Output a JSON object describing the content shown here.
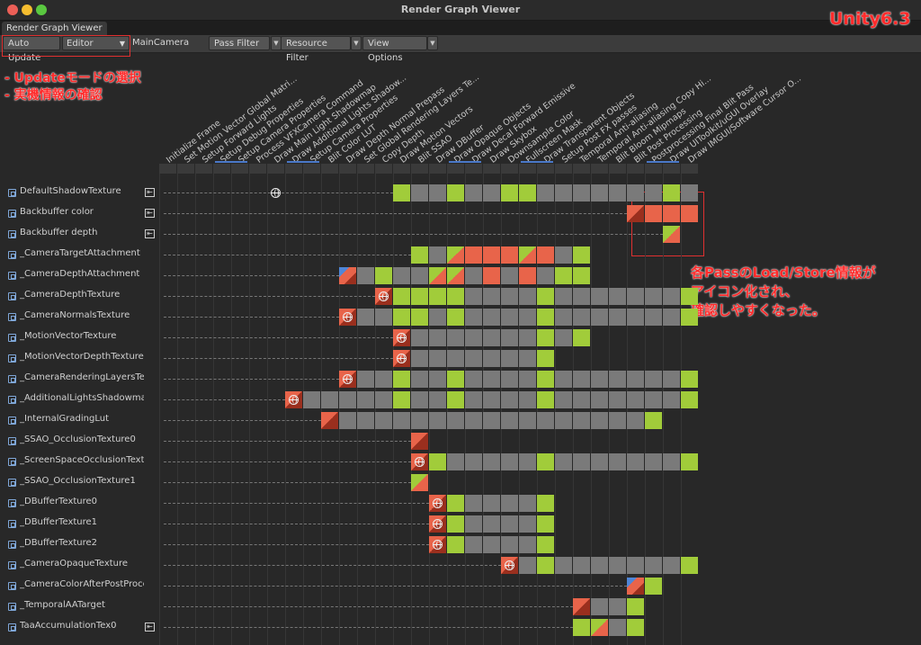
{
  "window": {
    "title": "Render Graph Viewer",
    "tab": "Render Graph Viewer",
    "traffic_lights": [
      "#ec5f57",
      "#f5bd2f",
      "#5ac840"
    ]
  },
  "toolbar": {
    "auto_update": "Auto Update",
    "mode": "Editor",
    "camera": "MainCamera",
    "pass_filter": "Pass Filter",
    "resource_filter": "Resource Filter",
    "view_options": "View Options"
  },
  "annotations": {
    "version": "Unity6.3",
    "update_line1": "- Updateモードの選択",
    "update_line2": "- 実機情報の確認",
    "loadstore_line1": "各PassのLoad/Store情報が",
    "loadstore_line2": "アイコン化され、",
    "loadstore_line3": "確認しやすくなった。"
  },
  "colors": {
    "read": "#a1cc3a",
    "write": "#e8644a",
    "unused": "#7a7a7a",
    "accent": "#ff2b2b"
  },
  "passes": [
    "Initialize Frame",
    "Set Motion Vector Global Matri...",
    "Setup Forward Lights",
    "Setup Debug Properties",
    "Setup Camera Properties",
    "Process VFXCamera Command",
    "Draw Main Light Shadowmap",
    "Draw Additional Lights Shadow...",
    "Setup Camera Properties",
    "Blit Color LUT",
    "Draw Depth Normal Prepass",
    "Set Global Rendering Layers Te...",
    "Copy Depth",
    "Draw Motion Vectors",
    "Blit SSAO",
    "Draw DBuffer",
    "Draw Opaque Objects",
    "Draw Decal Forward Emissive",
    "Draw Skybox",
    "Downsample Color",
    "Fullscreen Mask",
    "Draw Transparent Objects",
    "Setup Post FX passes",
    "Temporal Anti-aliasing",
    "Temporal Anti-aliasing Copy Hi...",
    "Blit Bloom Mipmaps",
    "Blit Post Processing",
    "Postprocessing Final Blit Pass",
    "Draw UIToolkit/uGUI Overlay",
    "Draw IMGUI/Software Cursor O..."
  ],
  "resources": [
    {
      "name": "DefaultShadowTexture",
      "imported": true,
      "cells": "13:g,14:n,15:n,16:g,17:n,18:n,19:g,20:g,21:n,22:n,23:n,24:n,25:n,26:n,27:n,28:g,29:n",
      "globe": 6
    },
    {
      "name": "Backbuffer color",
      "imported": true,
      "cells": "26:rw,27:r,28:r,29:r"
    },
    {
      "name": "Backbuffer depth",
      "imported": true,
      "cells": "28:gw"
    },
    {
      "name": "_CameraTargetAttachment",
      "imported": false,
      "cells": "14:g,15:n,16:gr,17:r,18:r,19:r,20:gr,21:r,22:n,23:g"
    },
    {
      "name": "_CameraDepthAttachment",
      "imported": false,
      "cells": "10:bw,11:n,12:g,13:n,14:n,15:gr,16:gr,17:n,18:r,19:n,20:r,21:n,22:g,23:g"
    },
    {
      "name": "_CameraDepthTexture",
      "imported": false,
      "cells": "12:G,13:g,14:g,15:g,16:g,17:n,18:n,19:n,20:n,21:g,22:n,23:n,24:n,25:n,26:n,27:n,28:n,29:g"
    },
    {
      "name": "_CameraNormalsTexture",
      "imported": false,
      "cells": "10:G,11:n,12:n,13:g,14:g,15:n,16:g,17:n,18:n,19:n,20:n,21:g,22:n,23:n,24:n,25:n,26:n,27:n,28:n,29:g"
    },
    {
      "name": "_MotionVectorTexture",
      "imported": false,
      "cells": "13:G,14:n,15:n,16:n,17:n,18:n,19:n,20:n,21:g,22:n,23:g"
    },
    {
      "name": "_MotionVectorDepthTexture",
      "imported": false,
      "cells": "13:G,14:n,15:n,16:n,17:n,18:n,19:n,20:n,21:g"
    },
    {
      "name": "_CameraRenderingLayersText...",
      "imported": false,
      "cells": "10:G,11:n,12:n,13:g,14:n,15:n,16:g,17:n,18:n,19:n,20:n,21:g,22:n,23:n,24:n,25:n,26:n,27:n,28:n,29:g",
      "globe": 11
    },
    {
      "name": "_AdditionalLightsShadowmap...",
      "imported": false,
      "cells": "7:G,8:n,9:n,10:n,11:n,12:n,13:g,14:n,15:n,16:g,17:n,18:n,19:n,20:n,21:g,22:n,23:n,24:n,25:n,26:n,27:n,28:n,29:g"
    },
    {
      "name": "_InternalGradingLut",
      "imported": false,
      "cells": "9:rw,10:n,11:n,12:n,13:n,14:n,15:n,16:n,17:n,18:n,19:n,20:n,21:n,22:n,23:n,24:n,25:n,26:n,27:g"
    },
    {
      "name": "_SSAO_OcclusionTexture0",
      "imported": false,
      "cells": "14:rw"
    },
    {
      "name": "_ScreenSpaceOcclusionTextu...",
      "imported": false,
      "cells": "14:G,15:g,16:n,17:n,18:n,19:n,20:n,21:g,22:n,23:n,24:n,25:n,26:n,27:n,28:n,29:g"
    },
    {
      "name": "_SSAO_OcclusionTexture1",
      "imported": false,
      "cells": "14:gw"
    },
    {
      "name": "_DBufferTexture0",
      "imported": false,
      "cells": "15:G,16:g,17:n,18:n,19:n,20:n,21:g"
    },
    {
      "name": "_DBufferTexture1",
      "imported": false,
      "cells": "15:G,16:g,17:n,18:n,19:n,20:n,21:g"
    },
    {
      "name": "_DBufferTexture2",
      "imported": false,
      "cells": "15:G,16:g,17:n,18:n,19:n,20:n,21:g"
    },
    {
      "name": "_CameraOpaqueTexture",
      "imported": false,
      "cells": "19:G,20:n,21:g,22:n,23:n,24:n,25:n,26:n,27:n,28:n,29:g"
    },
    {
      "name": "_CameraColorAfterPostProce...",
      "imported": false,
      "cells": "26:bw,27:g"
    },
    {
      "name": "_TemporalAATarget",
      "imported": false,
      "cells": "23:rw,24:n,25:n,26:g"
    },
    {
      "name": "TaaAccumulationTex0",
      "imported": true,
      "cells": "23:g,24:gr,25:n,26:g"
    }
  ]
}
